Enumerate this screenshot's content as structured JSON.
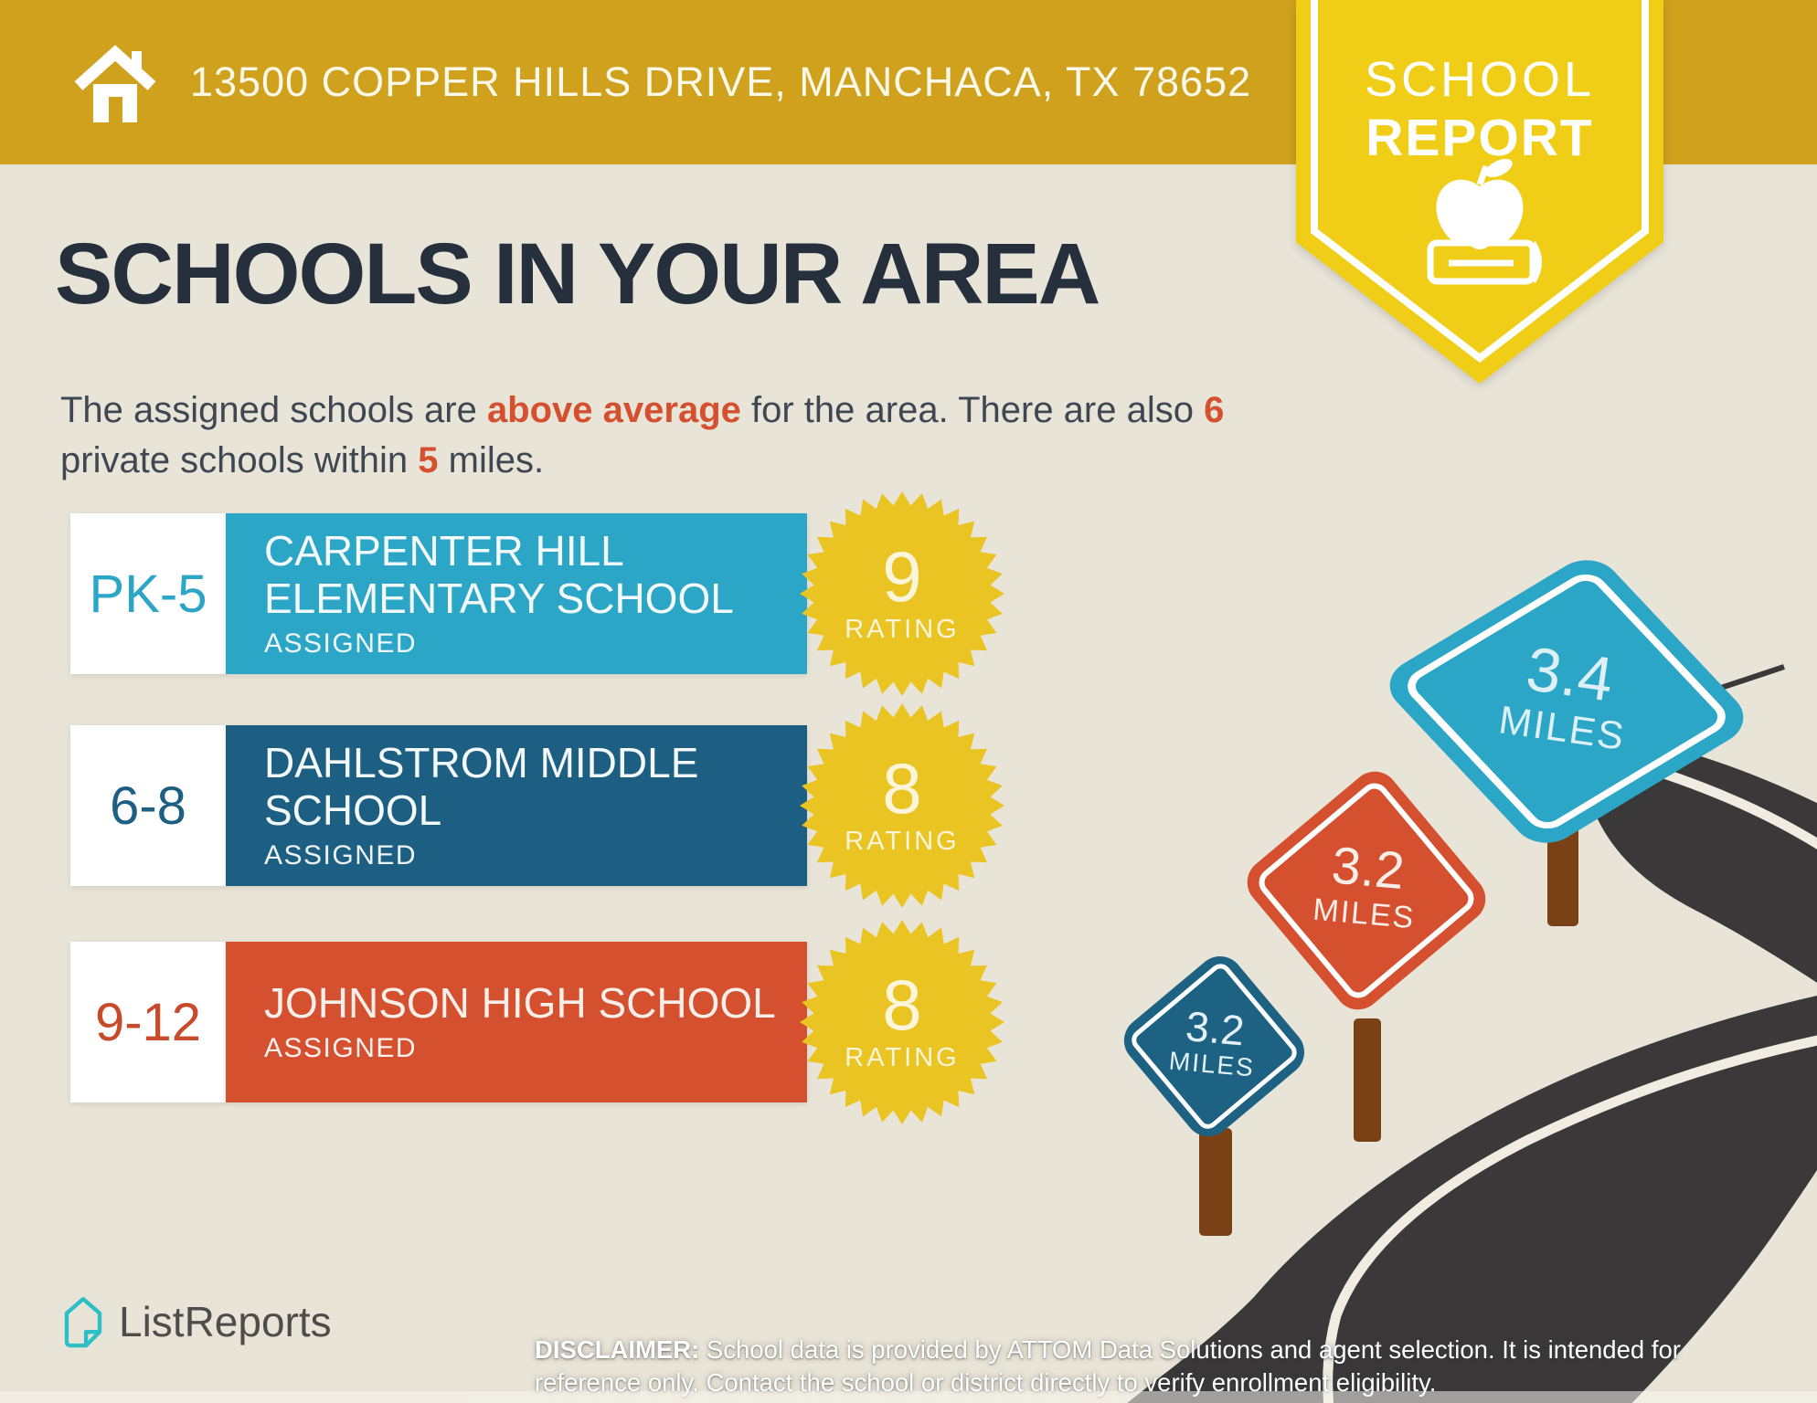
{
  "header": {
    "address": "13500 COPPER HILLS DRIVE, MANCHACA, TX 78652",
    "home_icon": "home-icon"
  },
  "report_badge": {
    "line1": "SCHOOL",
    "line2": "REPORT",
    "icon": "apple-on-book-icon"
  },
  "main": {
    "title": "SCHOOLS IN YOUR AREA",
    "intro": {
      "pre": "The assigned schools are ",
      "highlight_quality": "above average",
      "mid1": " for the area. There are also ",
      "highlight_count": "6",
      "mid2": " private schools within ",
      "highlight_radius": "5",
      "post": " miles."
    }
  },
  "schools": [
    {
      "grades": "PK-5",
      "name": "CARPENTER HILL ELEMENTARY SCHOOL",
      "status": "ASSIGNED",
      "rating": "9",
      "rating_label": "RATING",
      "color": "#2BA6C7"
    },
    {
      "grades": "6-8",
      "name": "DAHLSTROM MIDDLE SCHOOL",
      "status": "ASSIGNED",
      "rating": "8",
      "rating_label": "RATING",
      "color": "#1D5F82"
    },
    {
      "grades": "9-12",
      "name": "JOHNSON HIGH SCHOOL",
      "status": "ASSIGNED",
      "rating": "8",
      "rating_label": "RATING",
      "color": "#D4502F"
    }
  ],
  "signs": [
    {
      "distance": "3.2",
      "unit": "MILES",
      "color": "#1D6183"
    },
    {
      "distance": "3.2",
      "unit": "MILES",
      "color": "#D4502F"
    },
    {
      "distance": "3.4",
      "unit": "MILES",
      "color": "#2BA6C7"
    }
  ],
  "footer": {
    "brand": "ListReports",
    "logo_icon": "listreports-house-icon",
    "disclaimer_label": "DISCLAIMER:",
    "disclaimer_text": " School data is provided by ATTOM Data Solutions and agent selection. It is intended for reference only. Contact the school or district directly to verify enrollment eligibility."
  },
  "colors": {
    "banner_gold": "#CFA11D",
    "badge_yellow": "#F0CE17",
    "starburst_yellow": "#E9C422",
    "background_cream": "#E9E4D8",
    "teal": "#2BA6C7",
    "dark_blue": "#1D5F82",
    "red_orange": "#D4502F",
    "navy_text": "#25303C",
    "body_text": "#3E4752",
    "accent_red": "#D4502E",
    "road_charcoal": "#3A3839",
    "post_brown": "#7A4117",
    "logo_teal": "#2CBFC5"
  }
}
